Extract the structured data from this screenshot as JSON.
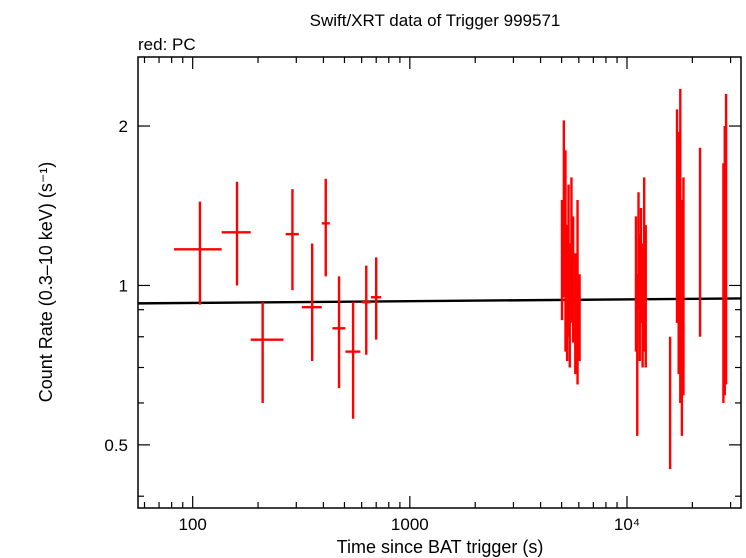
{
  "chart_data": {
    "type": "scatter",
    "title": "Swift/XRT data of Trigger 999571",
    "subtitle": "red: PC",
    "xlabel": "Time since BAT trigger (s)",
    "ylabel": "Count Rate (0.3–10 keV) (s⁻¹)",
    "xscale": "log",
    "yscale": "log",
    "xlim": [
      56,
      33500
    ],
    "ylim": [
      0.38,
      2.7
    ],
    "x_ticks": [
      {
        "value": 100,
        "label": "100"
      },
      {
        "value": 1000,
        "label": "1000"
      },
      {
        "value": 10000,
        "label": "10⁴"
      }
    ],
    "y_ticks": [
      {
        "value": 0.5,
        "label": "0.5"
      },
      {
        "value": 1,
        "label": "1"
      },
      {
        "value": 2,
        "label": "2"
      }
    ],
    "grid": false,
    "series": [
      {
        "color": "#ff0000",
        "points": [
          {
            "x": 108,
            "y": 1.17,
            "xlo": 82,
            "xhi": 136,
            "ylo": 0.92,
            "yhi": 1.44
          },
          {
            "x": 160,
            "y": 1.26,
            "xlo": 136,
            "xhi": 185,
            "ylo": 1.0,
            "yhi": 1.57
          },
          {
            "x": 210,
            "y": 0.79,
            "xlo": 185,
            "xhi": 262,
            "ylo": 0.6,
            "yhi": 0.93
          },
          {
            "x": 288,
            "y": 1.25,
            "xlo": 268,
            "xhi": 308,
            "ylo": 0.98,
            "yhi": 1.52
          },
          {
            "x": 355,
            "y": 0.91,
            "xlo": 318,
            "xhi": 393,
            "ylo": 0.72,
            "yhi": 1.2
          },
          {
            "x": 410,
            "y": 1.31,
            "xlo": 393,
            "xhi": 428,
            "ylo": 1.04,
            "yhi": 1.59
          },
          {
            "x": 472,
            "y": 0.83,
            "xlo": 440,
            "xhi": 505,
            "ylo": 0.64,
            "yhi": 1.04
          },
          {
            "x": 548,
            "y": 0.75,
            "xlo": 505,
            "xhi": 592,
            "ylo": 0.56,
            "yhi": 0.93
          },
          {
            "x": 630,
            "y": 0.93,
            "xlo": 600,
            "xhi": 660,
            "ylo": 0.74,
            "yhi": 1.09
          },
          {
            "x": 700,
            "y": 0.95,
            "xlo": 662,
            "xhi": 738,
            "ylo": 0.79,
            "yhi": 1.13
          },
          {
            "x": 5020,
            "y": 1.05,
            "xlo": 4980,
            "xhi": 5060,
            "ylo": 0.86,
            "yhi": 1.45
          },
          {
            "x": 5120,
            "y": 1.55,
            "xlo": 5090,
            "xhi": 5150,
            "ylo": 0.95,
            "yhi": 2.05
          },
          {
            "x": 5210,
            "y": 1.2,
            "xlo": 5180,
            "xhi": 5240,
            "ylo": 0.75,
            "yhi": 1.8
          },
          {
            "x": 5300,
            "y": 0.9,
            "xlo": 5270,
            "xhi": 5330,
            "ylo": 0.72,
            "yhi": 1.3
          },
          {
            "x": 5380,
            "y": 1.1,
            "xlo": 5350,
            "xhi": 5410,
            "ylo": 0.8,
            "yhi": 1.55
          },
          {
            "x": 5450,
            "y": 0.85,
            "xlo": 5420,
            "xhi": 5480,
            "ylo": 0.7,
            "yhi": 1.2
          },
          {
            "x": 5550,
            "y": 1.2,
            "xlo": 5520,
            "xhi": 5580,
            "ylo": 0.85,
            "yhi": 1.6
          },
          {
            "x": 5650,
            "y": 1.0,
            "xlo": 5620,
            "xhi": 5680,
            "ylo": 0.78,
            "yhi": 1.35
          },
          {
            "x": 5780,
            "y": 0.95,
            "xlo": 5740,
            "xhi": 5820,
            "ylo": 0.68,
            "yhi": 1.15
          },
          {
            "x": 5920,
            "y": 1.1,
            "xlo": 5880,
            "xhi": 5960,
            "ylo": 0.65,
            "yhi": 1.45
          },
          {
            "x": 6050,
            "y": 0.85,
            "xlo": 6010,
            "xhi": 6090,
            "ylo": 0.72,
            "yhi": 1.05
          },
          {
            "x": 11000,
            "y": 1.0,
            "xlo": 10950,
            "xhi": 11050,
            "ylo": 0.75,
            "yhi": 1.35
          },
          {
            "x": 11150,
            "y": 0.75,
            "xlo": 11100,
            "xhi": 11200,
            "ylo": 0.52,
            "yhi": 1.05
          },
          {
            "x": 11300,
            "y": 1.2,
            "xlo": 11250,
            "xhi": 11350,
            "ylo": 0.9,
            "yhi": 1.5
          },
          {
            "x": 11450,
            "y": 0.9,
            "xlo": 11400,
            "xhi": 11500,
            "ylo": 0.72,
            "yhi": 1.25
          },
          {
            "x": 11600,
            "y": 1.05,
            "xlo": 11550,
            "xhi": 11650,
            "ylo": 0.85,
            "yhi": 1.4
          },
          {
            "x": 11800,
            "y": 0.85,
            "xlo": 11750,
            "xhi": 11850,
            "ylo": 0.7,
            "yhi": 1.2
          },
          {
            "x": 12000,
            "y": 1.3,
            "xlo": 11950,
            "xhi": 12050,
            "ylo": 0.75,
            "yhi": 1.6
          },
          {
            "x": 12200,
            "y": 0.95,
            "xlo": 12150,
            "xhi": 12250,
            "ylo": 0.7,
            "yhi": 1.3
          },
          {
            "x": 15800,
            "y": 0.62,
            "xlo": 15750,
            "xhi": 15850,
            "ylo": 0.45,
            "yhi": 0.8
          },
          {
            "x": 17000,
            "y": 1.4,
            "xlo": 16950,
            "xhi": 17050,
            "ylo": 0.85,
            "yhi": 2.15
          },
          {
            "x": 17300,
            "y": 1.2,
            "xlo": 17250,
            "xhi": 17350,
            "ylo": 0.68,
            "yhi": 1.95
          },
          {
            "x": 17600,
            "y": 1.3,
            "xlo": 17550,
            "xhi": 17650,
            "ylo": 0.6,
            "yhi": 2.35
          },
          {
            "x": 17900,
            "y": 0.9,
            "xlo": 17850,
            "xhi": 17950,
            "ylo": 0.52,
            "yhi": 1.45
          },
          {
            "x": 18200,
            "y": 1.1,
            "xlo": 18150,
            "xhi": 18250,
            "ylo": 0.62,
            "yhi": 1.6
          },
          {
            "x": 21700,
            "y": 1.2,
            "xlo": 21650,
            "xhi": 21750,
            "ylo": 0.8,
            "yhi": 1.82
          },
          {
            "x": 27800,
            "y": 1.0,
            "xlo": 27750,
            "xhi": 27850,
            "ylo": 0.6,
            "yhi": 1.7
          },
          {
            "x": 28200,
            "y": 1.2,
            "xlo": 28150,
            "xhi": 28250,
            "ylo": 0.62,
            "yhi": 2.0
          },
          {
            "x": 28600,
            "y": 1.3,
            "xlo": 28550,
            "xhi": 28650,
            "ylo": 0.65,
            "yhi": 2.3
          }
        ]
      }
    ],
    "model_line": {
      "color": "#000000",
      "points": [
        {
          "x": 56,
          "y": 0.925
        },
        {
          "x": 33500,
          "y": 0.945
        }
      ]
    }
  }
}
